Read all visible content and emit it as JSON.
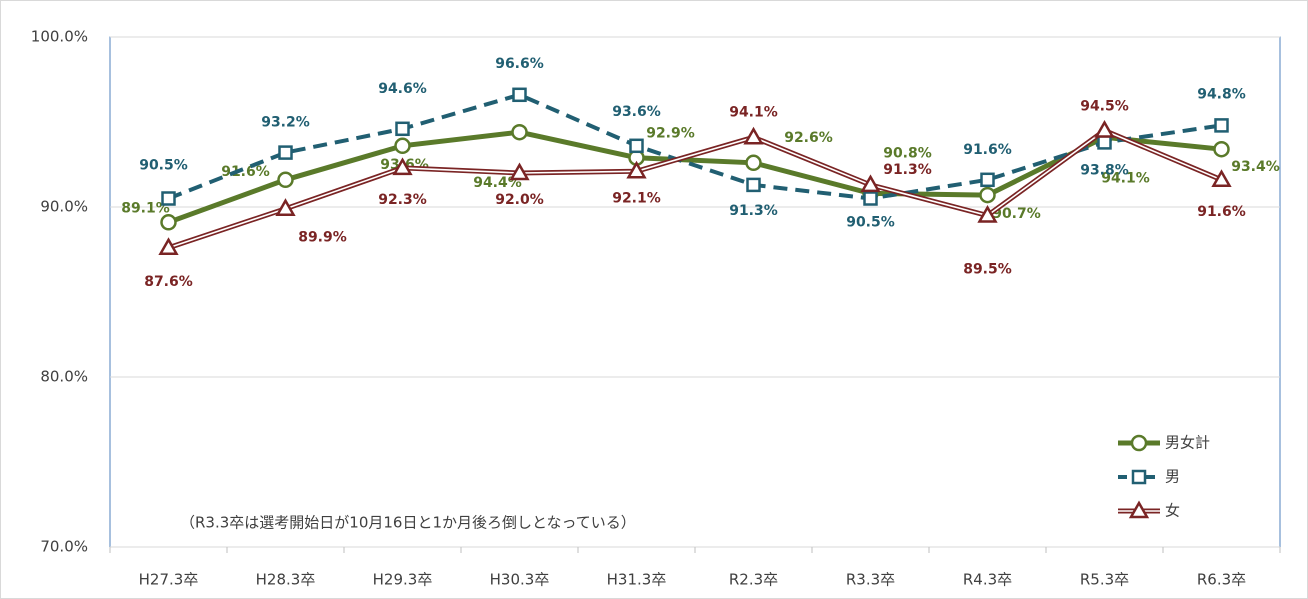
{
  "chart_data": {
    "type": "line",
    "categories": [
      "H27.3卒",
      "H28.3卒",
      "H29.3卒",
      "H30.3卒",
      "H31.3卒",
      "R2.3卒",
      "R3.3卒",
      "R4.3卒",
      "R5.3卒",
      "R6.3卒"
    ],
    "series": [
      {
        "name": "男女計",
        "color": "#5a7a2a",
        "marker": "circle",
        "dash": false,
        "double": false,
        "values": [
          89.1,
          91.6,
          93.6,
          94.4,
          92.9,
          92.6,
          90.8,
          90.7,
          94.1,
          93.4
        ],
        "value_labels": [
          "89.1%",
          "91.6%",
          "93.6%",
          "94.4%",
          "92.9%",
          "92.6%",
          "90.8%",
          "90.7%",
          "94.1%",
          "93.4%"
        ]
      },
      {
        "name": "男",
        "color": "#215f72",
        "marker": "square",
        "dash": true,
        "double": false,
        "values": [
          90.5,
          93.2,
          94.6,
          96.6,
          93.6,
          91.3,
          90.5,
          91.6,
          93.8,
          94.8
        ],
        "value_labels": [
          "90.5%",
          "93.2%",
          "94.6%",
          "96.6%",
          "93.6%",
          "91.3%",
          "90.5%",
          "91.6%",
          "93.8%",
          "94.8%"
        ]
      },
      {
        "name": "女",
        "color": "#7a2424",
        "marker": "triangle",
        "dash": false,
        "double": true,
        "values": [
          87.6,
          89.9,
          92.3,
          92.0,
          92.1,
          94.1,
          91.3,
          89.5,
          94.5,
          91.6
        ],
        "value_labels": [
          "87.6%",
          "89.9%",
          "92.3%",
          "92.0%",
          "92.1%",
          "94.1%",
          "91.3%",
          "89.5%",
          "94.5%",
          "91.6%"
        ]
      }
    ],
    "ylim": [
      70,
      100
    ],
    "yticks": [
      {
        "value": 70,
        "label": "70.0%"
      },
      {
        "value": 80,
        "label": "80.0%"
      },
      {
        "value": 90,
        "label": "90.0%"
      },
      {
        "value": 100,
        "label": "100.0%"
      }
    ],
    "grid": true,
    "legend": "lower right",
    "annotation": "（R3.3卒は選考開始日が10月16日と1か月後ろ倒しとなっている）"
  }
}
